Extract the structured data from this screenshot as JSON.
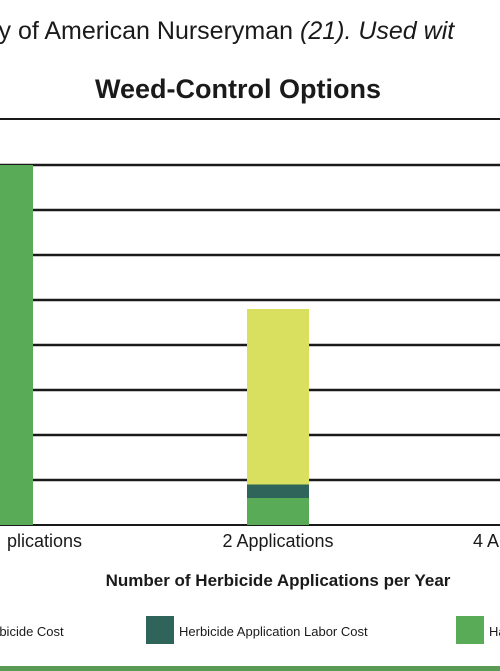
{
  "credit": {
    "prefix": "sy of American Nurseryman ",
    "ref": "(21). Used wit"
  },
  "legend": [
    {
      "label": "rbicide Cost",
      "color": "#d9df5e"
    },
    {
      "label": "Herbicide Application Labor Cost",
      "color": "#2e6459"
    },
    {
      "label": "Ha",
      "color": "#5aab57"
    }
  ],
  "chart_data": {
    "type": "bar",
    "stacked": true,
    "title": "Weed-Control Options",
    "xlabel": "Number of Herbicide Applications per Year",
    "ylabel": "",
    "categories": [
      "plications",
      "2 Applications",
      "4 A"
    ],
    "ylim": [
      0,
      8
    ],
    "grid": true,
    "legend_position": "bottom",
    "series": [
      {
        "name": "Ha",
        "color": "#5aab57",
        "values": [
          8.0,
          0.6,
          null
        ]
      },
      {
        "name": "Herbicide Application Labor Cost",
        "color": "#2e6459",
        "values": [
          0.0,
          0.3,
          null
        ]
      },
      {
        "name": "rbicide Cost",
        "color": "#d9df5e",
        "values": [
          0.0,
          3.9,
          null
        ]
      }
    ]
  }
}
